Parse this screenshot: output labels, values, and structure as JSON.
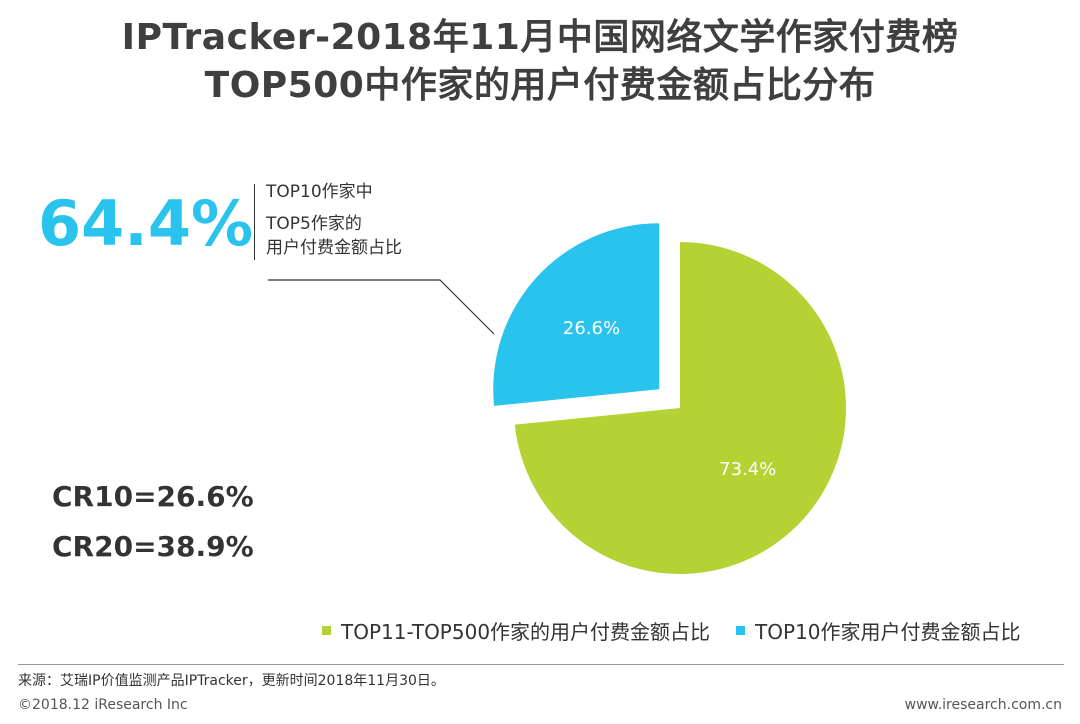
{
  "title": {
    "line1": "IPTracker-2018年11月中国网络文学作家付费榜",
    "line2": "TOP500中作家的用户付费金额占比分布"
  },
  "callout": {
    "value": "64.4%",
    "line1": "TOP10作家中",
    "line2": "TOP5作家的",
    "line3": "用户付费金额占比"
  },
  "concentration": {
    "cr10": "CR10=26.6%",
    "cr20": "CR20=38.9%"
  },
  "chart_data": {
    "type": "pie",
    "title": "TOP500中作家的用户付费金额占比分布",
    "slices": [
      {
        "label": "TOP10作家用户付费金额占比",
        "value": 26.6,
        "display": "26.6%",
        "color": "#29c3ee",
        "exploded": true
      },
      {
        "label": "TOP11-TOP500作家的用户付费金额占比",
        "value": 73.4,
        "display": "73.4%",
        "color": "#b4d233",
        "exploded": false
      }
    ],
    "legend_position": "bottom"
  },
  "legend": {
    "items": [
      {
        "label": "TOP11-TOP500作家的用户付费金额占比",
        "color": "#b4d233"
      },
      {
        "label": "TOP10作家用户付费金额占比",
        "color": "#29c3ee"
      }
    ]
  },
  "source": "来源：艾瑞IP价值监测产品IPTracker，更新时间2018年11月30日。",
  "footer": {
    "copyright": "©2018.12 iResearch Inc",
    "website": "www.iresearch.com.cn"
  }
}
